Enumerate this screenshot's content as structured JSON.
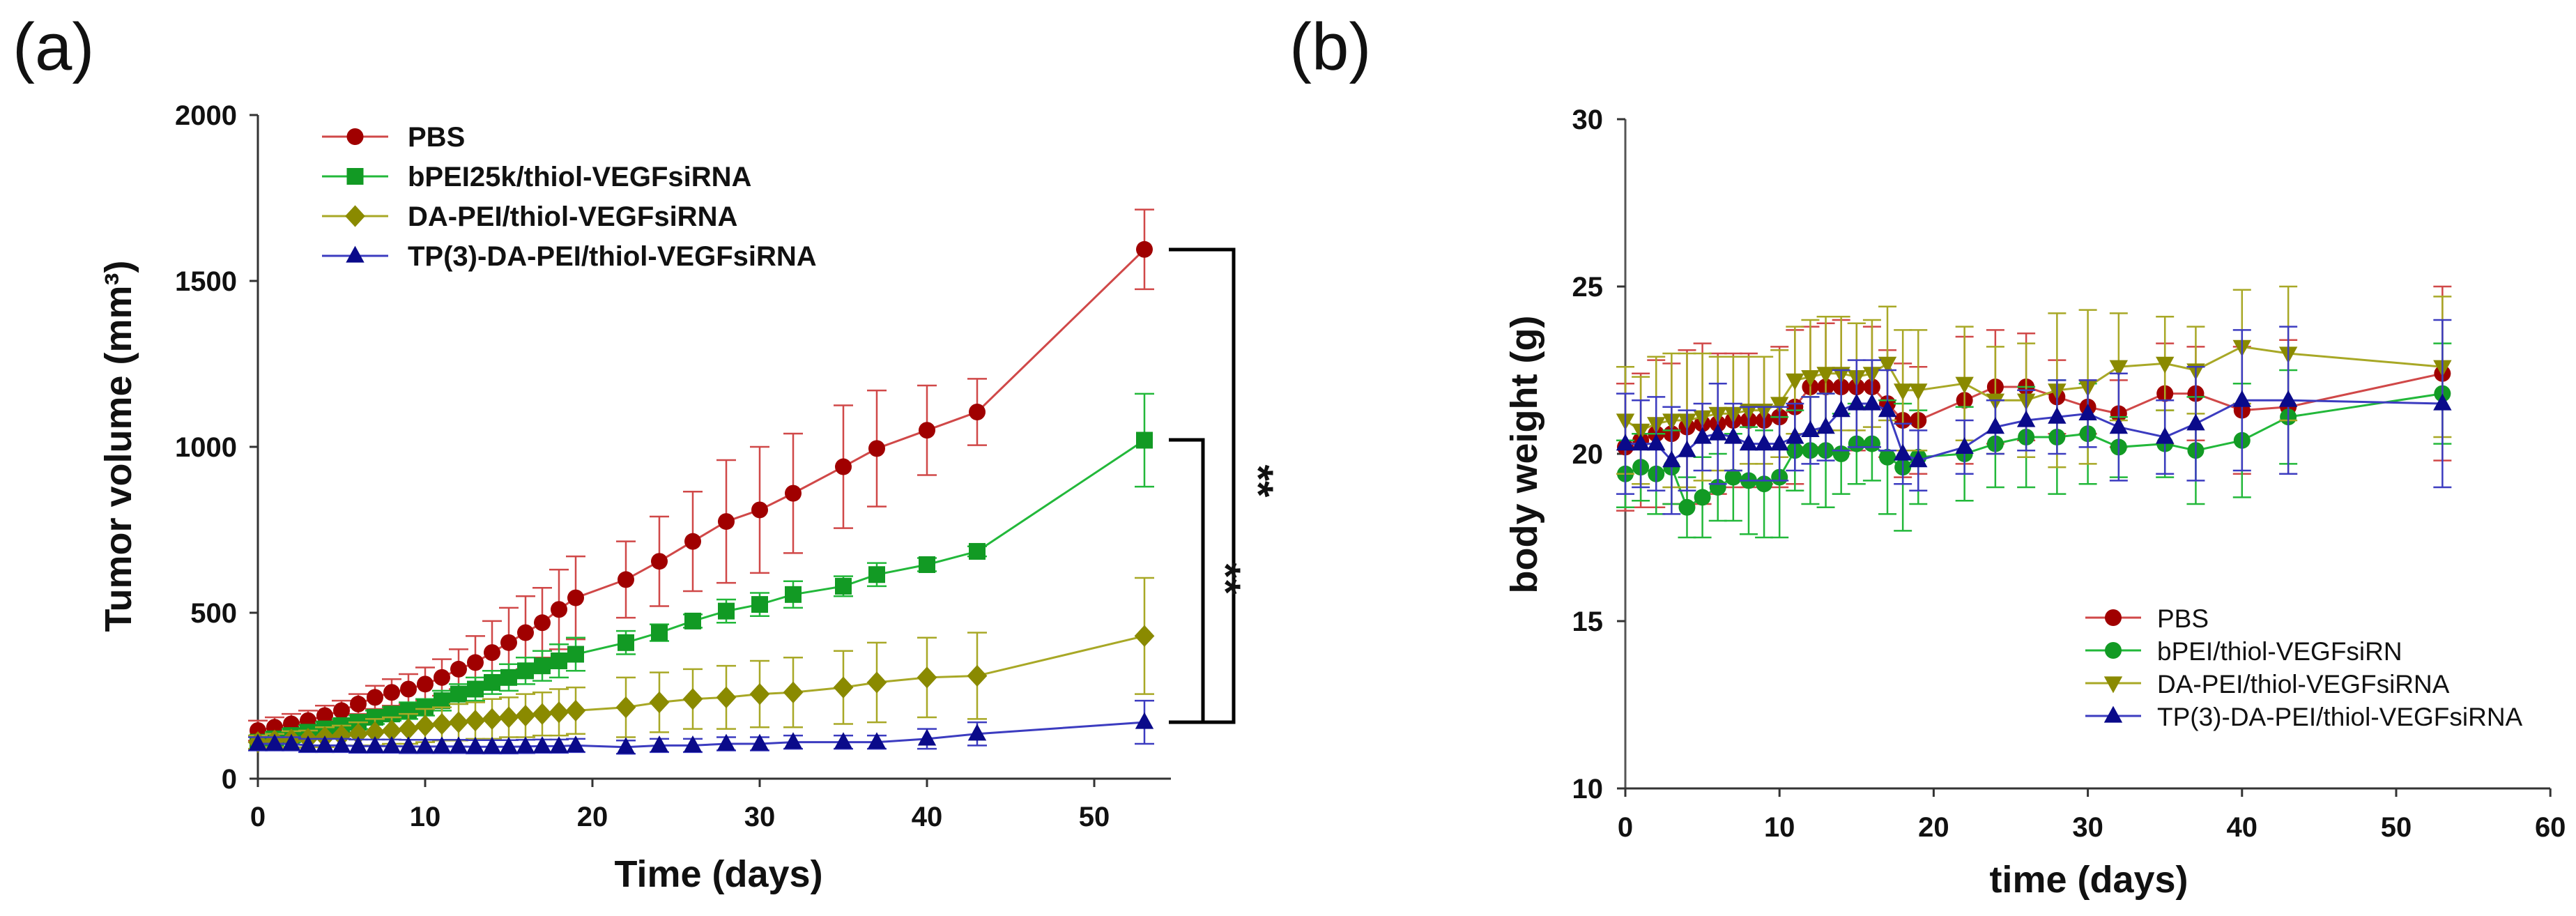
{
  "chart_data": [
    {
      "id": "a",
      "panel_label": "(a)",
      "type": "line",
      "xlabel": "Time (days)",
      "ylabel": "Tumor volume (mm³)",
      "xlim": [
        0,
        55
      ],
      "ylim": [
        0,
        2000
      ],
      "xticks": [
        0,
        10,
        20,
        30,
        40,
        50
      ],
      "yticks": [
        0,
        500,
        1000,
        1500,
        2000
      ],
      "legend_position": "top-left",
      "x": [
        0,
        1,
        2,
        3,
        4,
        5,
        6,
        7,
        8,
        9,
        10,
        11,
        12,
        13,
        14,
        15,
        16,
        17,
        18,
        19,
        22,
        24,
        26,
        28,
        30,
        32,
        35,
        37,
        40,
        43,
        53
      ],
      "series": [
        {
          "name": "PBS",
          "marker": "circle",
          "color": "#a00000",
          "line_color": "#d04848",
          "values": [
            145,
            155,
            165,
            175,
            190,
            205,
            225,
            245,
            260,
            270,
            285,
            305,
            330,
            350,
            380,
            410,
            440,
            470,
            510,
            545,
            600,
            655,
            715,
            775,
            810,
            860,
            940,
            995,
            1050,
            1105,
            1595
          ],
          "error": [
            30,
            30,
            30,
            30,
            30,
            30,
            30,
            35,
            40,
            45,
            50,
            55,
            60,
            80,
            95,
            105,
            110,
            105,
            120,
            125,
            115,
            135,
            150,
            185,
            190,
            180,
            185,
            175,
            135,
            100,
            120
          ]
        },
        {
          "name": "bPEI25k/thiol-VEGFsiRNA",
          "marker": "square",
          "color": "#129a24",
          "line_color": "#22b83a",
          "values": [
            110,
            120,
            130,
            140,
            150,
            160,
            170,
            185,
            195,
            205,
            215,
            235,
            255,
            270,
            290,
            305,
            325,
            340,
            355,
            375,
            410,
            440,
            475,
            505,
            525,
            555,
            580,
            615,
            645,
            685,
            1020
          ],
          "error": [
            20,
            20,
            20,
            20,
            20,
            20,
            20,
            20,
            20,
            25,
            25,
            30,
            30,
            35,
            35,
            40,
            40,
            45,
            50,
            50,
            35,
            25,
            20,
            35,
            35,
            40,
            30,
            35,
            20,
            15,
            140
          ]
        },
        {
          "name": "DA-PEI/thiol-VEGFsiRNA",
          "marker": "diamond",
          "color": "#8a8a00",
          "line_color": "#a8a826",
          "values": [
            110,
            115,
            118,
            120,
            125,
            130,
            135,
            140,
            145,
            150,
            160,
            165,
            170,
            175,
            180,
            185,
            190,
            195,
            200,
            205,
            215,
            230,
            240,
            245,
            255,
            260,
            275,
            290,
            305,
            310,
            430
          ],
          "error": [
            20,
            20,
            25,
            25,
            30,
            30,
            35,
            40,
            40,
            45,
            50,
            50,
            55,
            55,
            60,
            60,
            65,
            65,
            70,
            70,
            90,
            90,
            90,
            95,
            100,
            105,
            110,
            120,
            120,
            130,
            175
          ]
        },
        {
          "name": "TP(3)-DA-PEI/thiol-VEGFsiRNA",
          "marker": "triangle",
          "color": "#0a0a8a",
          "line_color": "#3c3cc0",
          "values": [
            105,
            105,
            105,
            100,
            100,
            100,
            98,
            98,
            98,
            97,
            97,
            97,
            97,
            96,
            96,
            96,
            97,
            98,
            98,
            100,
            95,
            100,
            100,
            105,
            105,
            110,
            110,
            110,
            120,
            135,
            170
          ],
          "error": [
            20,
            20,
            20,
            20,
            20,
            20,
            20,
            20,
            20,
            20,
            20,
            20,
            20,
            20,
            20,
            20,
            20,
            20,
            20,
            20,
            20,
            20,
            20,
            20,
            20,
            20,
            20,
            20,
            30,
            35,
            65
          ]
        }
      ],
      "annotations": [
        {
          "text": "**",
          "between": [
            "PBS",
            "TP(3)-DA-PEI/thiol-VEGFsiRNA"
          ],
          "at_x": 53
        },
        {
          "text": "**",
          "between": [
            "bPEI25k/thiol-VEGFsiRNA",
            "TP(3)-DA-PEI/thiol-VEGFsiRNA"
          ],
          "at_x": 53
        }
      ]
    },
    {
      "id": "b",
      "panel_label": "(b)",
      "type": "line",
      "xlabel": "time (days)",
      "ylabel": "body weight (g)",
      "xlim": [
        0,
        60
      ],
      "ylim": [
        10,
        30
      ],
      "xticks": [
        0,
        10,
        20,
        30,
        40,
        50,
        60
      ],
      "yticks": [
        10,
        15,
        20,
        25,
        30
      ],
      "legend_position": "bottom-right",
      "x": [
        0,
        1,
        2,
        3,
        4,
        5,
        6,
        7,
        8,
        9,
        10,
        11,
        12,
        13,
        14,
        15,
        16,
        17,
        18,
        19,
        22,
        24,
        26,
        28,
        30,
        32,
        35,
        37,
        40,
        43,
        53
      ],
      "series": [
        {
          "name": "PBS",
          "marker": "circle",
          "color": "#a00000",
          "line_color": "#d04848",
          "values": [
            20.2,
            20.4,
            20.6,
            20.6,
            20.8,
            20.9,
            20.9,
            21.0,
            21.0,
            21.0,
            21.1,
            21.4,
            22.0,
            22.0,
            22.0,
            22.0,
            22.0,
            21.5,
            21.0,
            21.0,
            21.6,
            22.0,
            22.0,
            21.7,
            21.4,
            21.2,
            21.8,
            21.8,
            21.3,
            21.4,
            22.4
          ],
          "error": [
            1.9,
            2.0,
            2.2,
            2.1,
            2.3,
            2.4,
            2.1,
            2.0,
            2.0,
            1.9,
            2.1,
            2.3,
            1.8,
            1.9,
            2.0,
            1.9,
            1.8,
            1.6,
            1.7,
            1.6,
            1.9,
            1.7,
            1.6,
            1.1,
            0.8,
            1.0,
            1.5,
            1.4,
            1.9,
            2.0,
            2.6
          ]
        },
        {
          "name": "bPEI/thiol-VEGFsiRN",
          "marker": "circle",
          "color": "#129a24",
          "line_color": "#22b83a",
          "values": [
            19.4,
            19.6,
            19.4,
            19.6,
            18.4,
            18.7,
            19.0,
            19.3,
            19.2,
            19.1,
            19.3,
            20.1,
            20.1,
            20.1,
            20.0,
            20.3,
            20.3,
            19.9,
            19.6,
            19.9,
            20.0,
            20.3,
            20.5,
            20.5,
            20.6,
            20.2,
            20.3,
            20.1,
            20.4,
            21.1,
            21.8
          ],
          "error": [
            1.0,
            1.0,
            1.2,
            1.1,
            0.9,
            1.2,
            1.0,
            1.3,
            1.6,
            1.6,
            1.8,
            1.2,
            1.6,
            1.7,
            1.2,
            1.2,
            1.1,
            1.7,
            1.9,
            1.4,
            1.4,
            1.3,
            1.5,
            1.7,
            1.5,
            0.9,
            1.0,
            1.6,
            1.7,
            1.4,
            1.5
          ]
        },
        {
          "name": "DA-PEI/thiol-VEGFsiRNA",
          "marker": "triangle-down",
          "color": "#8a8a00",
          "line_color": "#a8a826",
          "values": [
            21.0,
            20.7,
            20.9,
            21.0,
            21.0,
            21.1,
            21.2,
            21.2,
            21.3,
            21.3,
            21.5,
            22.2,
            22.3,
            22.4,
            22.4,
            22.3,
            22.4,
            22.7,
            21.9,
            21.9,
            22.1,
            21.6,
            21.6,
            21.9,
            22.0,
            22.6,
            22.7,
            22.5,
            23.2,
            23.0,
            22.6
          ],
          "error": [
            1.6,
            1.6,
            2.0,
            2.0,
            2.0,
            1.9,
            1.7,
            1.7,
            1.6,
            1.6,
            1.6,
            1.6,
            1.7,
            1.7,
            1.7,
            1.6,
            1.6,
            1.7,
            1.8,
            1.8,
            1.7,
            1.6,
            1.7,
            2.3,
            2.3,
            1.6,
            1.4,
            1.3,
            1.7,
            2.0,
            2.1
          ]
        },
        {
          "name": "TP(3)-DA-PEI/thiol-VEGFsiRNA",
          "marker": "triangle",
          "color": "#0a0a8a",
          "line_color": "#3c3cc0",
          "values": [
            20.3,
            20.3,
            20.3,
            19.8,
            20.1,
            20.5,
            20.6,
            20.5,
            20.3,
            20.3,
            20.3,
            20.5,
            20.7,
            20.8,
            21.3,
            21.5,
            21.5,
            21.3,
            20.0,
            19.8,
            20.2,
            20.8,
            21.0,
            21.1,
            21.2,
            20.8,
            20.5,
            20.9,
            21.6,
            21.6,
            21.5
          ],
          "error": [
            1.5,
            1.3,
            1.4,
            1.6,
            1.2,
            1.0,
            1.5,
            1.0,
            1.1,
            1.1,
            1.1,
            1.0,
            1.0,
            1.0,
            1.2,
            1.3,
            1.3,
            1.2,
            0.9,
            0.9,
            0.8,
            0.8,
            0.9,
            1.1,
            1.0,
            1.6,
            1.1,
            1.7,
            2.1,
            2.2,
            2.5
          ]
        }
      ]
    }
  ]
}
